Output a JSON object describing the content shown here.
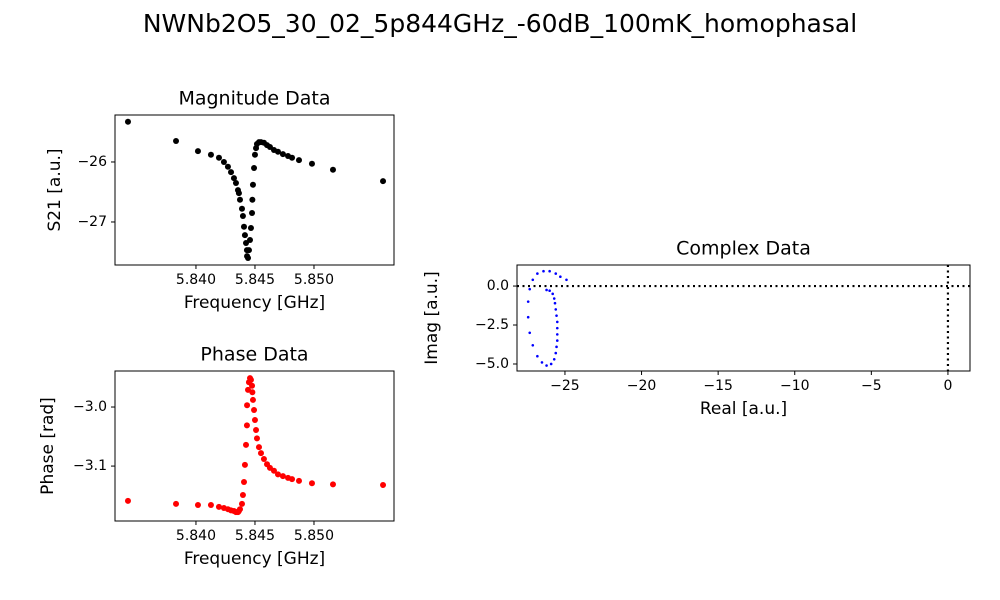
{
  "title": "NWNb2O5_30_02_5p844GHz_-60dB_100mK_homophasal",
  "chart_data": [
    {
      "type": "scatter",
      "title": "Magnitude Data",
      "xlabel": "Frequency [GHz]",
      "ylabel": "S21 [a.u.]",
      "color": "#000000",
      "x": [
        5.83424,
        5.83831,
        5.84017,
        5.84127,
        5.84195,
        5.84237,
        5.84271,
        5.84297,
        5.84322,
        5.84339,
        5.84356,
        5.84364,
        5.84373,
        5.8439,
        5.84398,
        5.84407,
        5.84415,
        5.84424,
        5.84432,
        5.84433,
        5.84441,
        5.84449,
        5.84458,
        5.84466,
        5.84475,
        5.84478,
        5.84483,
        5.84492,
        5.845,
        5.84509,
        5.84517,
        5.84534,
        5.84551,
        5.84576,
        5.84602,
        5.84627,
        5.84661,
        5.84695,
        5.84737,
        5.8478,
        5.84814,
        5.84873,
        5.84983,
        5.85161,
        5.85585
      ],
      "values": [
        -25.33,
        -25.65,
        -25.82,
        -25.88,
        -25.93,
        -26.0,
        -26.08,
        -26.17,
        -26.27,
        -26.35,
        -26.47,
        -26.52,
        -26.63,
        -26.78,
        -26.9,
        -27.08,
        -27.22,
        -27.35,
        -27.47,
        -27.57,
        -27.6,
        -27.47,
        -27.3,
        -27.1,
        -26.85,
        -26.63,
        -26.38,
        -26.1,
        -25.88,
        -25.77,
        -25.7,
        -25.67,
        -25.67,
        -25.68,
        -25.72,
        -25.75,
        -25.8,
        -25.83,
        -25.87,
        -25.9,
        -25.93,
        -25.97,
        -26.03,
        -26.13,
        -26.32
      ],
      "xlim": [
        5.83314,
        5.85678
      ],
      "ylim": [
        -27.717,
        -25.217
      ],
      "xticks": [
        {
          "value": 5.84,
          "label": "5.840"
        },
        5.845,
        {
          "value": 5.85,
          "label": "5.850"
        }
      ],
      "yticks": [
        {
          "value": -26,
          "label": "−26"
        },
        {
          "value": -27,
          "label": "−27"
        }
      ]
    },
    {
      "type": "scatter",
      "title": "Phase Data",
      "xlabel": "Frequency [GHz]",
      "ylabel": "Phase [rad]",
      "color": "#ff0000",
      "x": [
        5.83424,
        5.83831,
        5.84017,
        5.84127,
        5.84195,
        5.84237,
        5.84271,
        5.84297,
        5.84322,
        5.84339,
        5.84356,
        5.84364,
        5.84373,
        5.8439,
        5.84398,
        5.84407,
        5.84415,
        5.84424,
        5.84432,
        5.84433,
        5.84441,
        5.84449,
        5.84458,
        5.84466,
        5.84475,
        5.84478,
        5.84483,
        5.84492,
        5.845,
        5.84509,
        5.84517,
        5.84534,
        5.84551,
        5.84576,
        5.84602,
        5.84627,
        5.84661,
        5.84695,
        5.84737,
        5.8478,
        5.84814,
        5.84873,
        5.84983,
        5.85161,
        5.85585
      ],
      "values": [
        -3.159,
        -3.164,
        -3.166,
        -3.166,
        -3.169,
        -3.171,
        -3.173,
        -3.175,
        -3.176,
        -3.178,
        -3.178,
        -3.176,
        -3.173,
        -3.164,
        -3.149,
        -3.127,
        -3.098,
        -3.064,
        -3.031,
        -2.997,
        -2.971,
        -2.958,
        -2.951,
        -2.954,
        -2.964,
        -2.975,
        -2.988,
        -3.005,
        -3.022,
        -3.039,
        -3.053,
        -3.068,
        -3.078,
        -3.088,
        -3.097,
        -3.103,
        -3.108,
        -3.114,
        -3.117,
        -3.12,
        -3.122,
        -3.125,
        -3.129,
        -3.131,
        -3.132
      ],
      "xlim": [
        5.83314,
        5.85678
      ],
      "ylim": [
        -3.193,
        -2.939
      ],
      "xticks": [
        {
          "value": 5.84,
          "label": "5.840"
        },
        5.845,
        {
          "value": 5.85,
          "label": "5.850"
        }
      ],
      "yticks": [
        {
          "value": -3.0,
          "label": "−3.0"
        },
        {
          "value": -3.1,
          "label": "−3.1"
        }
      ]
    },
    {
      "type": "scatter",
      "title": "Complex Data",
      "xlabel": "Real [a.u.]",
      "ylabel": "Imag [a.u.]",
      "color": "#0000ff",
      "x": [
        -24.9,
        -25.3,
        -25.6,
        -26.0,
        -26.4,
        -26.8,
        -27.1,
        -27.3,
        -27.4,
        -27.4,
        -27.3,
        -27.1,
        -26.8,
        -26.5,
        -26.2,
        -25.9,
        -25.7,
        -25.6,
        -25.55,
        -25.5,
        -25.5,
        -25.5,
        -25.5,
        -25.55,
        -25.6,
        -25.65,
        -25.7,
        -25.8,
        -26.0,
        -26.2
      ],
      "values": [
        0.4,
        0.6,
        0.8,
        0.95,
        0.95,
        0.8,
        0.4,
        -0.2,
        -1.0,
        -2.0,
        -3.0,
        -3.8,
        -4.5,
        -4.9,
        -5.1,
        -5.0,
        -4.7,
        -4.3,
        -3.9,
        -3.5,
        -3.1,
        -2.7,
        -2.3,
        -1.9,
        -1.5,
        -1.1,
        -0.8,
        -0.5,
        -0.3,
        -0.25
      ],
      "xlim": [
        -28.13,
        1.44
      ],
      "ylim": [
        -5.45,
        1.35
      ],
      "xticks": [
        {
          "value": -25,
          "label": "−25"
        },
        {
          "value": -20,
          "label": "−20"
        },
        {
          "value": -15,
          "label": "−15"
        },
        {
          "value": -10,
          "label": "−10"
        },
        {
          "value": -5,
          "label": "−5"
        },
        0
      ],
      "yticks": [
        {
          "value": 0,
          "label": "0.0"
        },
        {
          "value": -2.5,
          "label": "−2.5"
        },
        {
          "value": -5,
          "label": "−5.0"
        }
      ],
      "hlines": [
        0
      ],
      "vlines": [
        0
      ]
    }
  ]
}
